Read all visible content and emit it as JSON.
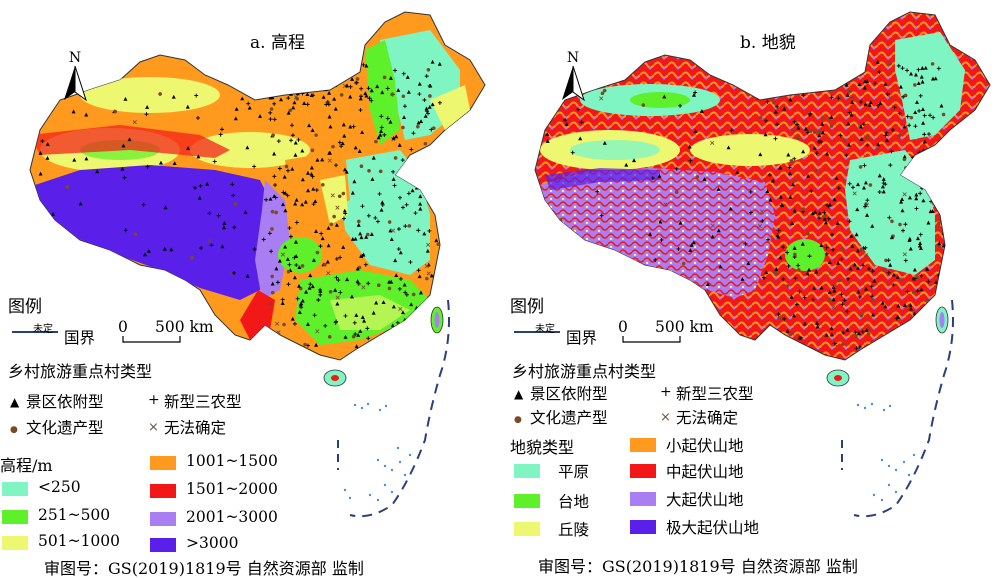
{
  "panels": {
    "a": {
      "title": "a. 高程"
    },
    "b": {
      "title": "b. 地貌"
    }
  },
  "north_label": "N",
  "legend": {
    "title": "图例",
    "boundary_undetermined": "未定",
    "boundary_label": "国界",
    "scale_zero": "0",
    "scale_label": "500 km",
    "village_title": "乡村旅游重点村类型",
    "village_types": [
      {
        "label": "景区依附型",
        "symbol": "▲",
        "color": "#000000"
      },
      {
        "label": "新型三农型",
        "symbol": "+",
        "color": "#000000"
      },
      {
        "label": "文化遗产型",
        "symbol": "●",
        "color": "#7a4a23"
      },
      {
        "label": "无法确定",
        "symbol": "×",
        "color": "#6b4a2e"
      }
    ]
  },
  "elevation": {
    "title": "高程/m",
    "classes": [
      {
        "label": "<250",
        "color": "#7ff5c4"
      },
      {
        "label": "251~500",
        "color": "#5ef02a"
      },
      {
        "label": "501~1000",
        "color": "#eef770"
      },
      {
        "label": "1001~1500",
        "color": "#ff9a1e"
      },
      {
        "label": "1501~2000",
        "color": "#f31818"
      },
      {
        "label": "2001~3000",
        "color": "#a97ef2"
      },
      {
        "label": ">3000",
        "color": "#5a1fe8"
      }
    ]
  },
  "landform": {
    "title": "地貌类型",
    "classes": [
      {
        "label": "平原",
        "color": "#7ff5c4"
      },
      {
        "label": "台地",
        "color": "#5ef02a"
      },
      {
        "label": "丘陵",
        "color": "#eef770"
      },
      {
        "label": "小起伏山地",
        "color": "#ff9a1e"
      },
      {
        "label": "中起伏山地",
        "color": "#f31818"
      },
      {
        "label": "大起伏山地",
        "color": "#a97ef2"
      },
      {
        "label": "极大起伏山地",
        "color": "#5a1fe8"
      }
    ]
  },
  "approval": {
    "a": "审图号：GS(2019)1819号   自然资源部 监制",
    "b": "审图号：GS(2019)1819号   自然资源部 监制"
  }
}
